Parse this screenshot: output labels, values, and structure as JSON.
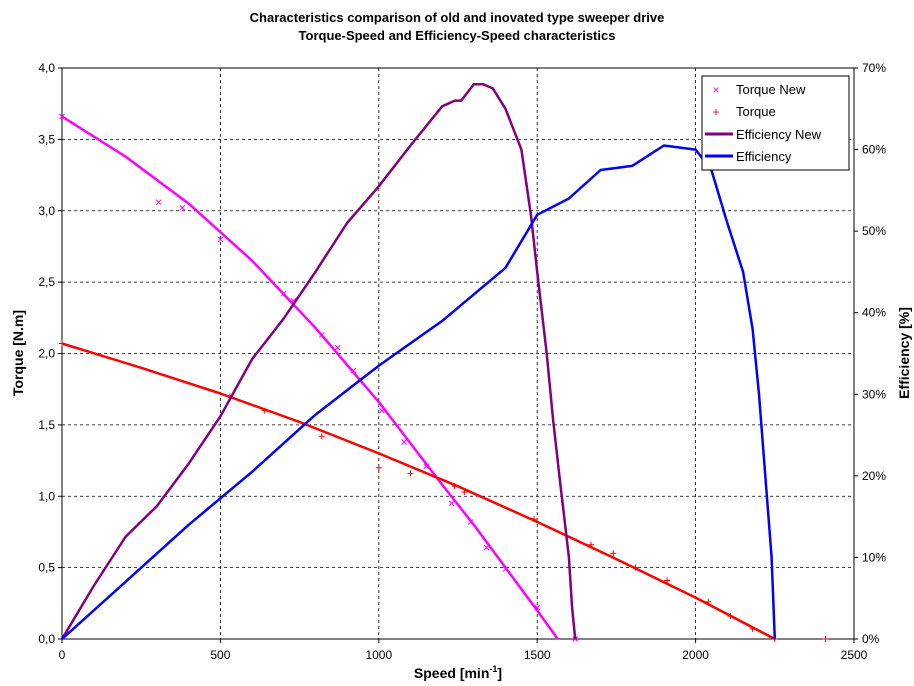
{
  "chart_data": {
    "type": "line",
    "title": "Characteristics comparison of old and inovated type sweeper drive",
    "subtitle": "Torque-Speed and Efficiency-Speed characteristics",
    "xlabel": "Speed [min",
    "xlabel_sup": "-1",
    "xlabel_end": "]",
    "ylabel": "Torque [N.m]",
    "y2label": "Efficiency [%]",
    "xlim": [
      0,
      2500
    ],
    "ylim": [
      0,
      4
    ],
    "y2lim": [
      0,
      70
    ],
    "x_ticks": [
      "0",
      "500",
      "1000",
      "1500",
      "2000",
      "2500"
    ],
    "y_ticks": [
      "0,0",
      "0,5",
      "1,0",
      "1,5",
      "2,0",
      "2,5",
      "3,0",
      "3,5",
      "4,0"
    ],
    "y2_ticks": [
      "0%",
      "10%",
      "20%",
      "30%",
      "40%",
      "50%",
      "60%",
      "70%"
    ],
    "grid": true,
    "legend_position": "top-right",
    "series": [
      {
        "name": "Torque New",
        "axis": "left",
        "color": "#ff00ff",
        "marker": "x",
        "line": [
          [
            0,
            3.66
          ],
          [
            200,
            3.38
          ],
          [
            400,
            3.05
          ],
          [
            600,
            2.65
          ],
          [
            800,
            2.18
          ],
          [
            1000,
            1.66
          ],
          [
            1200,
            1.08
          ],
          [
            1300,
            0.8
          ],
          [
            1400,
            0.5
          ],
          [
            1500,
            0.2
          ],
          [
            1565,
            0.0
          ]
        ],
        "points": [
          [
            0,
            3.66
          ],
          [
            305,
            3.06
          ],
          [
            380,
            3.02
          ],
          [
            500,
            2.8
          ],
          [
            700,
            2.42
          ],
          [
            730,
            2.37
          ],
          [
            820,
            2.13
          ],
          [
            870,
            2.04
          ],
          [
            920,
            1.88
          ],
          [
            1010,
            1.6
          ],
          [
            1080,
            1.38
          ],
          [
            1150,
            1.21
          ],
          [
            1230,
            0.95
          ],
          [
            1290,
            0.82
          ],
          [
            1340,
            0.64
          ],
          [
            1400,
            0.49
          ],
          [
            1500,
            0.22
          ],
          [
            1620,
            0.0
          ]
        ]
      },
      {
        "name": "Torque",
        "axis": "left",
        "color": "#ff0000",
        "marker": "+",
        "line": [
          [
            0,
            2.07
          ],
          [
            250,
            1.9
          ],
          [
            500,
            1.72
          ],
          [
            750,
            1.52
          ],
          [
            1000,
            1.3
          ],
          [
            1250,
            1.07
          ],
          [
            1500,
            0.82
          ],
          [
            1750,
            0.56
          ],
          [
            2000,
            0.29
          ],
          [
            2250,
            0.0
          ]
        ],
        "points": [
          [
            0,
            2.07
          ],
          [
            530,
            1.7
          ],
          [
            640,
            1.6
          ],
          [
            820,
            1.42
          ],
          [
            1000,
            1.2
          ],
          [
            1100,
            1.16
          ],
          [
            1240,
            1.07
          ],
          [
            1270,
            1.03
          ],
          [
            1490,
            0.84
          ],
          [
            1670,
            0.66
          ],
          [
            1740,
            0.6
          ],
          [
            1810,
            0.5
          ],
          [
            1910,
            0.41
          ],
          [
            2040,
            0.26
          ],
          [
            2110,
            0.16
          ],
          [
            2180,
            0.07
          ],
          [
            2250,
            0.0
          ],
          [
            2410,
            0.0
          ]
        ]
      },
      {
        "name": "Efficiency New",
        "axis": "right",
        "color": "#800080",
        "marker": "line",
        "line": [
          [
            0,
            0.0
          ],
          [
            100,
            6.5
          ],
          [
            200,
            12.5
          ],
          [
            300,
            16.3
          ],
          [
            400,
            21.5
          ],
          [
            500,
            27.3
          ],
          [
            600,
            34.3
          ],
          [
            700,
            39.3
          ],
          [
            800,
            45.0
          ],
          [
            900,
            51.0
          ],
          [
            1000,
            55.5
          ],
          [
            1100,
            60.5
          ],
          [
            1200,
            65.3
          ],
          [
            1240,
            66.0
          ],
          [
            1260,
            66.0
          ],
          [
            1280,
            67.0
          ],
          [
            1300,
            68.0
          ],
          [
            1330,
            68.0
          ],
          [
            1360,
            67.5
          ],
          [
            1400,
            65.0
          ],
          [
            1450,
            60.0
          ],
          [
            1480,
            52.0
          ],
          [
            1500,
            45.0
          ],
          [
            1530,
            35.0
          ],
          [
            1550,
            27.0
          ],
          [
            1570,
            20.0
          ],
          [
            1600,
            10.0
          ],
          [
            1610,
            4.0
          ],
          [
            1620,
            0.0
          ]
        ]
      },
      {
        "name": "Efficiency",
        "axis": "right",
        "color": "#0000ff",
        "marker": "line",
        "line": [
          [
            0,
            0.0
          ],
          [
            200,
            7.0
          ],
          [
            400,
            14.0
          ],
          [
            600,
            20.5
          ],
          [
            800,
            27.5
          ],
          [
            1000,
            33.5
          ],
          [
            1200,
            39.0
          ],
          [
            1400,
            45.5
          ],
          [
            1500,
            52.0
          ],
          [
            1600,
            54.0
          ],
          [
            1700,
            57.5
          ],
          [
            1800,
            58.0
          ],
          [
            1900,
            60.5
          ],
          [
            2000,
            60.0
          ],
          [
            2050,
            57.5
          ],
          [
            2100,
            51.0
          ],
          [
            2150,
            45.0
          ],
          [
            2180,
            38.0
          ],
          [
            2200,
            30.0
          ],
          [
            2220,
            20.0
          ],
          [
            2240,
            10.0
          ],
          [
            2250,
            0.0
          ]
        ]
      }
    ]
  }
}
